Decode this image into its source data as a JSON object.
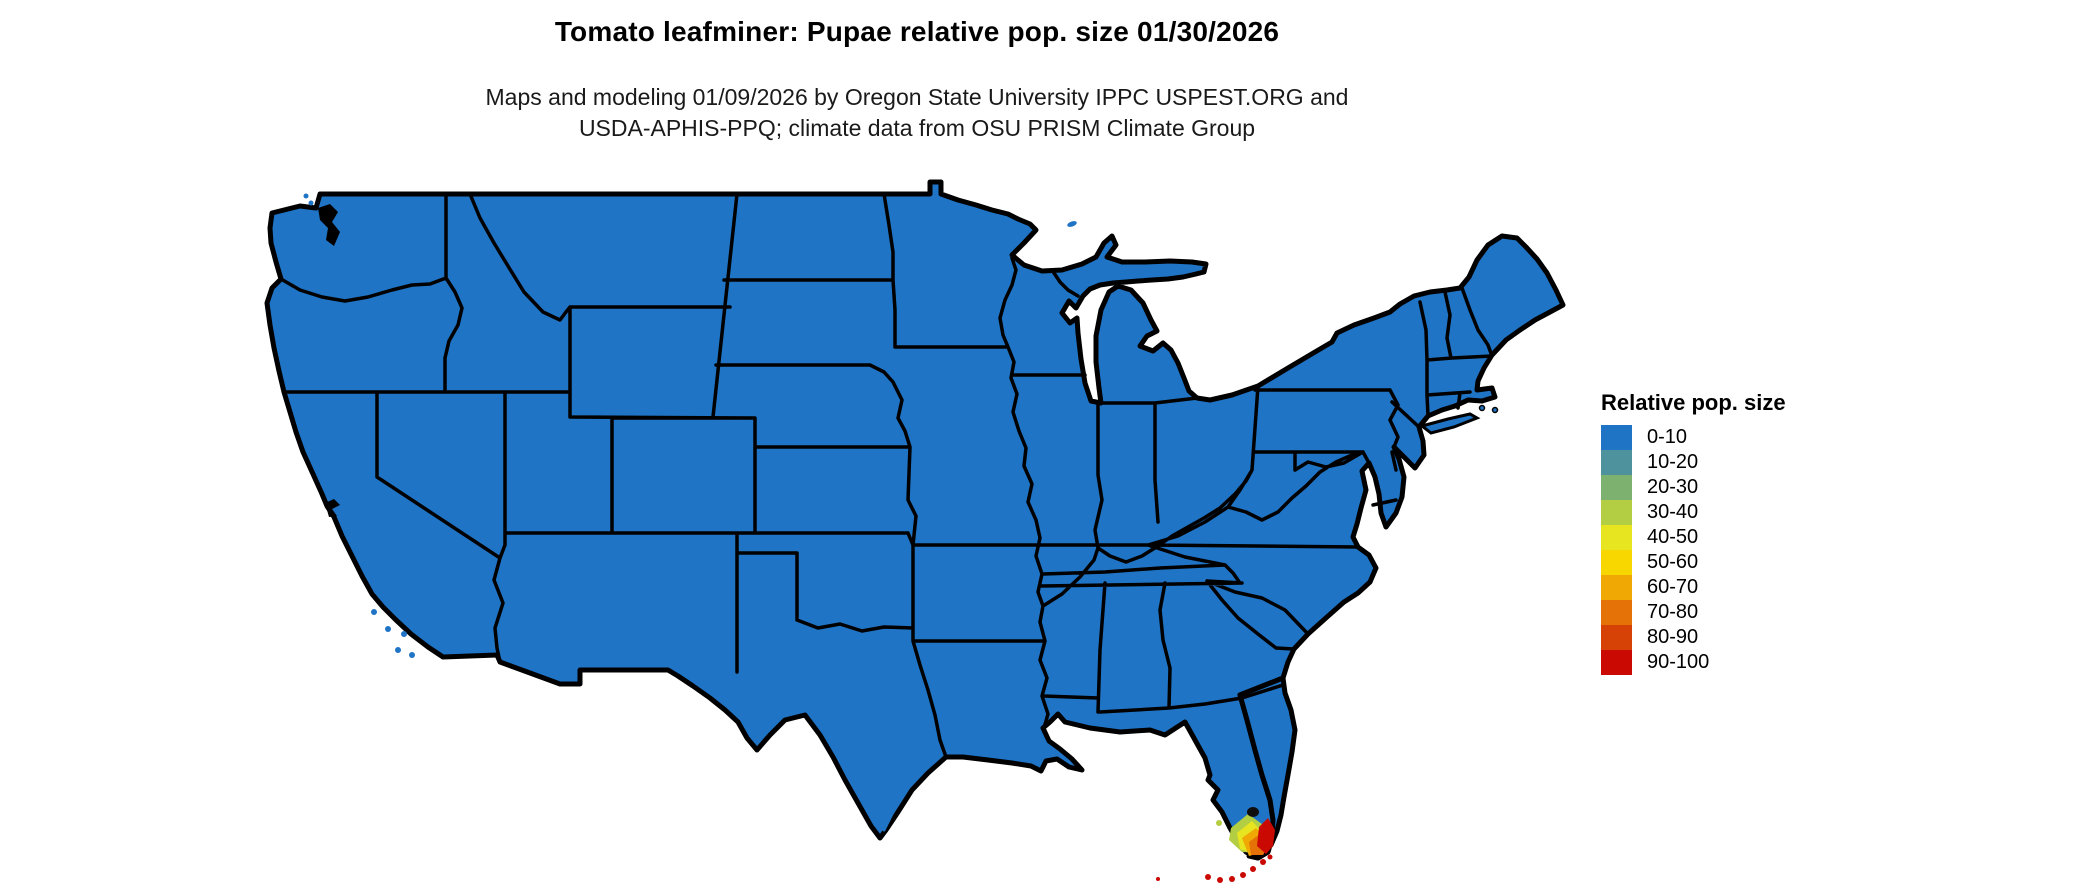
{
  "title": "Tomato leafminer: Pupae relative pop. size 01/30/2026",
  "subtitle_line1": "Maps and modeling 01/09/2026 by Oregon State University IPPC USPEST.ORG and",
  "subtitle_line2": "USDA-APHIS-PPQ; climate data from OSU PRISM Climate Group",
  "legend": {
    "title": "Relative pop. size",
    "items": [
      {
        "label": "0-10",
        "color": "#1F74C6"
      },
      {
        "label": "10-20",
        "color": "#4E929E"
      },
      {
        "label": "20-30",
        "color": "#7DB170"
      },
      {
        "label": "30-40",
        "color": "#B4CE43"
      },
      {
        "label": "40-50",
        "color": "#E7E51F"
      },
      {
        "label": "50-60",
        "color": "#F8D701"
      },
      {
        "label": "60-70",
        "color": "#F0A804"
      },
      {
        "label": "70-80",
        "color": "#E47206"
      },
      {
        "label": "80-90",
        "color": "#D64106"
      },
      {
        "label": "90-100",
        "color": "#CA0903"
      }
    ]
  },
  "map": {
    "region": "Contiguous United States",
    "land_fill_class": "0-10",
    "land_fill": "#1F74C6",
    "border_color": "#000000",
    "water_detail_color": "#000000",
    "background": "#FFFFFF",
    "hotspot": {
      "location": "southern tip of Florida and Florida Keys",
      "classes_present": [
        "30-40",
        "40-50",
        "60-70",
        "70-80",
        "80-90",
        "90-100"
      ]
    }
  }
}
